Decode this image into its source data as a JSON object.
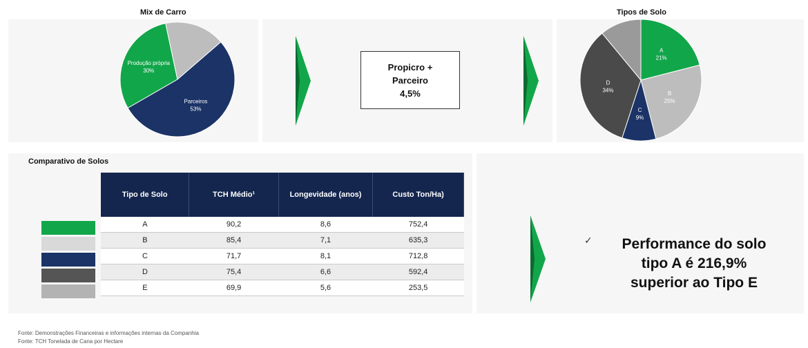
{
  "top_left_title": "Mix de Carro",
  "top_right_title": "Tipos de Solo",
  "middle_box": {
    "line1": "Propicro +",
    "line2": "Parceiro",
    "line3": "4,5%"
  },
  "compare_title": "Comparativo de Solos",
  "table": {
    "headers": [
      "Tipo de Solo",
      "TCH Médio¹",
      "Longevidade (anos)",
      "Custo Ton/Ha)"
    ],
    "rows": [
      [
        "A",
        "90,2",
        "8,6",
        "752,4"
      ],
      [
        "B",
        "85,4",
        "7,1",
        "635,3"
      ],
      [
        "C",
        "71,7",
        "8,1",
        "712,8"
      ],
      [
        "D",
        "75,4",
        "6,6",
        "592,4"
      ],
      [
        "E",
        "69,9",
        "5,6",
        "253,5"
      ]
    ]
  },
  "callout": {
    "line1": "Performance do solo",
    "line2": "tipo A é 216,9%",
    "line3": "superior ao Tipo E"
  },
  "footnote1": "Fonte: Demonstrações Financeiras e informações internas da Companhia",
  "footnote2": "Fonte: TCH Tonelada de Cana por Hectare",
  "colors": {
    "green": "#12a64a",
    "navy": "#1b3366",
    "gray": "#b3b3b3",
    "darkgray": "#555555",
    "lightgray": "#d0d0d0"
  },
  "chart_data": [
    {
      "type": "pie",
      "title": "Mix de Carro",
      "slices": [
        {
          "label": "Produção própria",
          "value": 30,
          "color": "#12a64a",
          "text": "Produção própria\n30%"
        },
        {
          "label": "",
          "value": 17,
          "color": "#bdbdbd",
          "text": ""
        },
        {
          "label": "Parceiros",
          "value": 53,
          "color": "#1b3366",
          "text": "Parceiros\n53%"
        }
      ]
    },
    {
      "type": "pie",
      "title": "Tipos de Solo",
      "slices": [
        {
          "label": "A",
          "value": 21,
          "color": "#12a64a",
          "text": "A\n21%"
        },
        {
          "label": "B",
          "value": 25,
          "color": "#bdbdbd",
          "text": "B\n25%"
        },
        {
          "label": "C",
          "value": 9,
          "color": "#1b3366",
          "text": "C\n9%"
        },
        {
          "label": "D",
          "value": 34,
          "color": "#4a4a4a",
          "text": "D\n34%"
        },
        {
          "label": "E",
          "value": 11,
          "color": "#9a9a9a",
          "text": ""
        }
      ]
    }
  ]
}
